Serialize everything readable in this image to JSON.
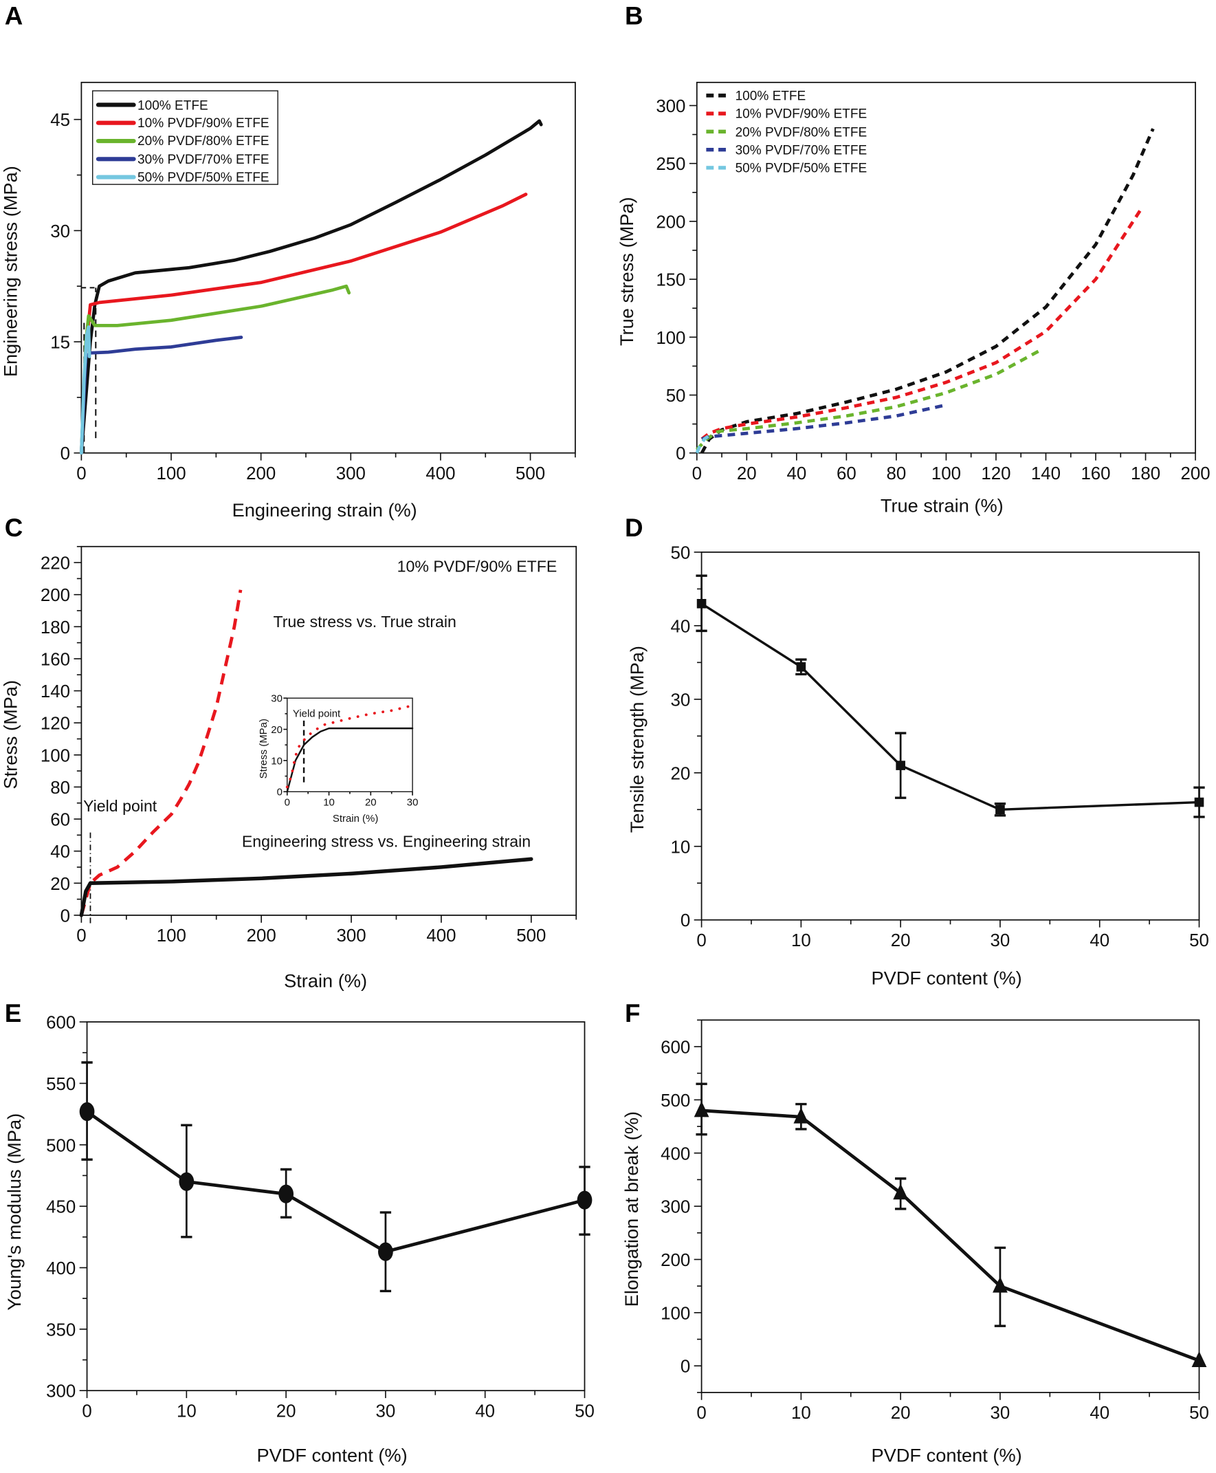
{
  "colors": {
    "black": "#111111",
    "red": "#e8171e",
    "green": "#6ab42d",
    "blue": "#2e3c96",
    "cyan": "#74c7e0"
  },
  "chart_data": [
    {
      "panel": "A",
      "type": "line",
      "xlabel": "Engineering strain (%)",
      "ylabel": "Engineering stress (MPa)",
      "xlim": [
        0,
        550
      ],
      "ylim": [
        0,
        50
      ],
      "xticks": [
        "0",
        "100",
        "200",
        "300",
        "400",
        "500"
      ],
      "yticks": [
        "0",
        "15",
        "30",
        "45"
      ],
      "legend": "top-left",
      "series": [
        {
          "name": "100% ETFE",
          "color": "#111111",
          "points": [
            [
              0,
              0
            ],
            [
              10,
              15
            ],
            [
              15,
              20
            ],
            [
              20,
              22.5
            ],
            [
              30,
              23.2
            ],
            [
              60,
              24.3
            ],
            [
              120,
              25
            ],
            [
              170,
              26
            ],
            [
              210,
              27.2
            ],
            [
              260,
              29
            ],
            [
              300,
              30.8
            ],
            [
              350,
              33.8
            ],
            [
              400,
              36.9
            ],
            [
              450,
              40.2
            ],
            [
              500,
              43.8
            ],
            [
              510,
              44.8
            ],
            [
              512,
              44.3
            ]
          ]
        },
        {
          "name": "10% PVDF/90% ETFE",
          "color": "#e8171e",
          "points": [
            [
              0,
              0
            ],
            [
              5,
              14
            ],
            [
              10,
              20
            ],
            [
              20,
              20.3
            ],
            [
              100,
              21.3
            ],
            [
              200,
              23
            ],
            [
              300,
              25.9
            ],
            [
              400,
              29.8
            ],
            [
              470,
              33.4
            ],
            [
              495,
              34.9
            ]
          ]
        },
        {
          "name": "20% PVDF/80% ETFE",
          "color": "#6ab42d",
          "points": [
            [
              0,
              0
            ],
            [
              5,
              15
            ],
            [
              8,
              18.5
            ],
            [
              15,
              17.2
            ],
            [
              40,
              17.2
            ],
            [
              100,
              17.9
            ],
            [
              200,
              19.8
            ],
            [
              280,
              22
            ],
            [
              295,
              22.5
            ],
            [
              298,
              21.6
            ]
          ]
        },
        {
          "name": "30% PVDF/70% ETFE",
          "color": "#2e3c96",
          "points": [
            [
              0,
              0
            ],
            [
              5,
              13
            ],
            [
              10,
              13.5
            ],
            [
              30,
              13.6
            ],
            [
              60,
              14
            ],
            [
              100,
              14.3
            ],
            [
              150,
              15.2
            ],
            [
              178,
              15.6
            ]
          ]
        },
        {
          "name": "50% PVDF/50% ETFE",
          "color": "#74c7e0",
          "points": [
            [
              0,
              0
            ],
            [
              3,
              10
            ],
            [
              6,
              16
            ],
            [
              8,
              17
            ],
            [
              9,
              13
            ]
          ]
        }
      ]
    },
    {
      "panel": "B",
      "type": "line",
      "xlabel": "True strain (%)",
      "ylabel": "True stress (MPa)",
      "xlim": [
        0,
        200
      ],
      "ylim": [
        0,
        320
      ],
      "xticks": [
        "0",
        "20",
        "40",
        "60",
        "80",
        "100",
        "120",
        "140",
        "160",
        "180",
        "200"
      ],
      "yticks": [
        "0",
        "50",
        "100",
        "150",
        "200",
        "250",
        "300"
      ],
      "legend": "top-left",
      "series": [
        {
          "name": "100% ETFE",
          "color": "#111111",
          "points": [
            [
              2,
              0
            ],
            [
              5,
              12
            ],
            [
              10,
              20
            ],
            [
              20,
              27
            ],
            [
              40,
              34
            ],
            [
              60,
              44
            ],
            [
              80,
              55
            ],
            [
              100,
              70
            ],
            [
              120,
              92
            ],
            [
              140,
              126
            ],
            [
              160,
              180
            ],
            [
              175,
              240
            ],
            [
              183,
              280
            ]
          ]
        },
        {
          "name": "10% PVDF/90% ETFE",
          "color": "#e8171e",
          "points": [
            [
              2,
              12
            ],
            [
              5,
              17
            ],
            [
              10,
              21
            ],
            [
              20,
              25
            ],
            [
              40,
              31
            ],
            [
              60,
              39
            ],
            [
              80,
              48
            ],
            [
              100,
              61
            ],
            [
              120,
              78
            ],
            [
              140,
              105
            ],
            [
              160,
              150
            ],
            [
              178,
              210
            ]
          ]
        },
        {
          "name": "20% PVDF/80% ETFE",
          "color": "#6ab42d",
          "points": [
            [
              0,
              3
            ],
            [
              4,
              12
            ],
            [
              8,
              18
            ],
            [
              10,
              19
            ],
            [
              20,
              21
            ],
            [
              40,
              26
            ],
            [
              60,
              32
            ],
            [
              80,
              40
            ],
            [
              100,
              52
            ],
            [
              120,
              68
            ],
            [
              138,
              89
            ]
          ]
        },
        {
          "name": "30% PVDF/70% ETFE",
          "color": "#2e3c96",
          "points": [
            [
              2,
              12
            ],
            [
              5,
              14
            ],
            [
              10,
              15
            ],
            [
              20,
              17
            ],
            [
              40,
              21
            ],
            [
              60,
              26
            ],
            [
              80,
              32
            ],
            [
              99,
              41
            ]
          ]
        },
        {
          "name": "50% PVDF/50% ETFE",
          "color": "#74c7e0",
          "points": [
            [
              0,
              0
            ],
            [
              1,
              5
            ],
            [
              3,
              12
            ],
            [
              5,
              15
            ]
          ]
        }
      ]
    },
    {
      "panel": "C",
      "type": "line",
      "title": "10% PVDF/90% ETFE",
      "xlabel": "Strain (%)",
      "ylabel": "Stress (MPa)",
      "xlim": [
        0,
        550
      ],
      "ylim": [
        0,
        230
      ],
      "xticks": [
        "0",
        "100",
        "200",
        "300",
        "400",
        "500"
      ],
      "yticks": [
        "0",
        "20",
        "40",
        "60",
        "80",
        "100",
        "120",
        "140",
        "160",
        "180",
        "200",
        "220"
      ],
      "annotations": {
        "true": "True stress vs. True strain",
        "eng": "Engineering stress vs. Engineering strain",
        "yield": "Yield point"
      },
      "series": [
        {
          "label": "True stress vs. True strain",
          "color": "#e8171e",
          "points": [
            [
              0,
              0
            ],
            [
              10,
              20
            ],
            [
              20,
              25
            ],
            [
              40,
              30
            ],
            [
              60,
              40
            ],
            [
              80,
              52
            ],
            [
              100,
              63
            ],
            [
              110,
              72
            ],
            [
              120,
              82
            ],
            [
              130,
              95
            ],
            [
              140,
              112
            ],
            [
              150,
              130
            ],
            [
              160,
              155
            ],
            [
              170,
              180
            ],
            [
              177,
              203
            ]
          ]
        },
        {
          "label": "Engineering stress vs. Engineering strain",
          "color": "#111111",
          "points": [
            [
              0,
              0
            ],
            [
              5,
              15
            ],
            [
              10,
              20
            ],
            [
              100,
              21
            ],
            [
              200,
              23
            ],
            [
              300,
              26
            ],
            [
              400,
              30
            ],
            [
              500,
              35
            ]
          ]
        }
      ],
      "inset": {
        "xlabel": "Strain (%)",
        "ylabel": "Stress (MPa)",
        "xlim": [
          0,
          30
        ],
        "ylim": [
          0,
          30
        ],
        "xticks": [
          "0",
          "10",
          "20",
          "30"
        ],
        "yticks": [
          "0",
          "10",
          "20",
          "30"
        ],
        "annotation": "Yield point",
        "series": [
          {
            "color": "#111111",
            "points": [
              [
                0,
                0
              ],
              [
                2,
                10
              ],
              [
                4,
                15
              ],
              [
                6,
                17.5
              ],
              [
                8,
                19.3
              ],
              [
                10,
                20.3
              ],
              [
                30,
                20.3
              ]
            ]
          },
          {
            "color": "#e8171e",
            "points": [
              [
                0,
                1.5
              ],
              [
                1,
                5
              ],
              [
                2,
                11.5
              ],
              [
                3,
                15
              ],
              [
                5,
                18
              ],
              [
                7,
                20
              ],
              [
                9,
                21.5
              ],
              [
                12,
                22.5
              ],
              [
                15,
                23.5
              ],
              [
                20,
                25
              ],
              [
                25,
                26
              ],
              [
                29,
                27.3
              ]
            ]
          }
        ]
      }
    },
    {
      "panel": "D",
      "type": "line",
      "xlabel": "PVDF content (%)",
      "ylabel": "Tensile strength (MPa)",
      "marker": "square",
      "xlim": [
        0,
        50
      ],
      "ylim": [
        0,
        50
      ],
      "xticks": [
        "0",
        "10",
        "20",
        "30",
        "40",
        "50"
      ],
      "yticks": [
        "0",
        "10",
        "20",
        "30",
        "40",
        "50"
      ],
      "x": [
        0,
        10,
        20,
        30,
        50
      ],
      "y": [
        43,
        34.4,
        21,
        15,
        16
      ],
      "err_low": [
        39.3,
        33.4,
        16.6,
        14.2,
        14
      ],
      "err_high": [
        46.8,
        35.4,
        25.4,
        15.8,
        18
      ]
    },
    {
      "panel": "E",
      "type": "line",
      "xlabel": "PVDF content (%)",
      "ylabel": "Young's modulus (MPa)",
      "marker": "circle",
      "xlim": [
        0,
        50
      ],
      "ylim": [
        300,
        600
      ],
      "xticks": [
        "0",
        "10",
        "20",
        "30",
        "40",
        "50"
      ],
      "yticks": [
        "300",
        "350",
        "400",
        "450",
        "500",
        "550",
        "600"
      ],
      "x": [
        0,
        10,
        20,
        30,
        50
      ],
      "y": [
        527,
        470,
        460,
        413,
        455
      ],
      "err_low": [
        488,
        425,
        441,
        381,
        427
      ],
      "err_high": [
        567,
        516,
        480,
        445,
        482
      ]
    },
    {
      "panel": "F",
      "type": "line",
      "xlabel": "PVDF content (%)",
      "ylabel": "Elongation at break (%)",
      "marker": "triangle",
      "xlim": [
        0,
        50
      ],
      "ylim": [
        -50,
        650
      ],
      "xticks": [
        "0",
        "10",
        "20",
        "30",
        "40",
        "50"
      ],
      "yticks": [
        "0",
        "100",
        "200",
        "300",
        "400",
        "500",
        "600"
      ],
      "x": [
        0,
        10,
        20,
        30,
        50
      ],
      "y": [
        480,
        468,
        325,
        150,
        10
      ],
      "err_low": [
        435,
        445,
        295,
        75,
        10
      ],
      "err_high": [
        530,
        492,
        352,
        222,
        10
      ]
    }
  ]
}
